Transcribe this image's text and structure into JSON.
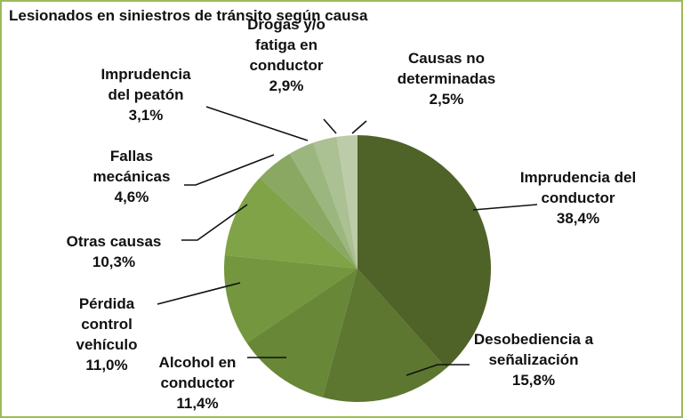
{
  "chart_data": {
    "type": "pie",
    "title": "Lesionados en siniestros de tránsito según causa",
    "categories": [
      "Imprudencia del conductor",
      "Desobediencia a señalización",
      "Alcohol en conductor",
      "Pérdida control vehículo",
      "Otras causas",
      "Fallas mecánicas",
      "Imprudencia del peatón",
      "Drogas y/o fatiga en conductor",
      "Causas no determinadas"
    ],
    "values": [
      38.4,
      15.8,
      11.4,
      11.0,
      10.3,
      4.6,
      3.1,
      2.9,
      2.5
    ],
    "value_labels": [
      "38,4%",
      "15,8%",
      "11,4%",
      "11,0%",
      "10,3%",
      "4,6%",
      "3,1%",
      "2,9%",
      "2,5%"
    ],
    "colors": [
      "#4f6228",
      "#5d7630",
      "#688737",
      "#74963e",
      "#7fa346",
      "#8aa862",
      "#9cb67f",
      "#abc093",
      "#bccba8"
    ]
  }
}
